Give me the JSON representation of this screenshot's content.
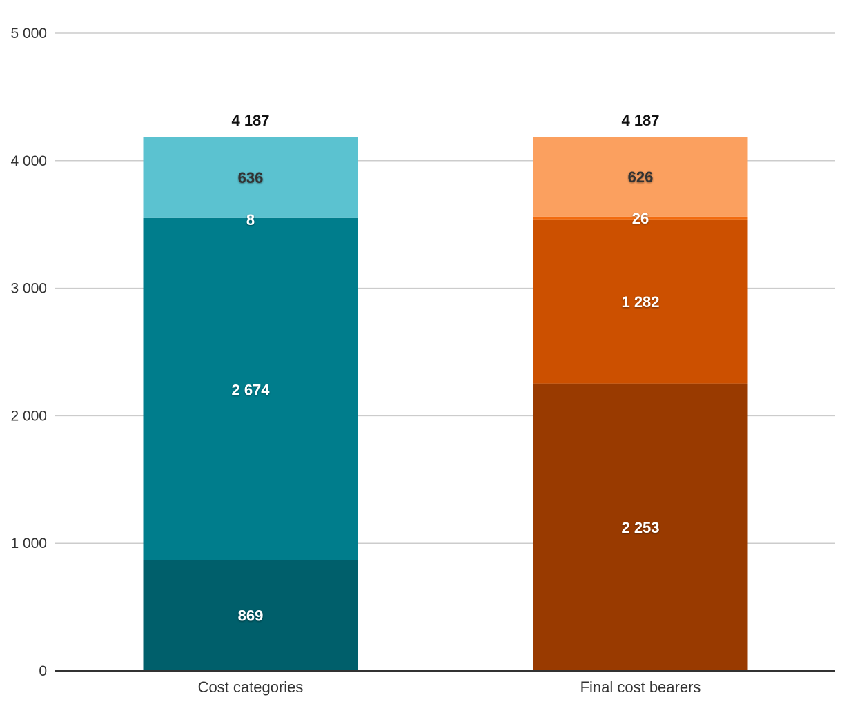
{
  "chart_data": {
    "type": "bar",
    "stacked": true,
    "categories": [
      "Cost categories",
      "Final cost bearers"
    ],
    "ylim": [
      0,
      5000
    ],
    "yticks": [
      0,
      1000,
      2000,
      3000,
      4000,
      5000
    ],
    "ytick_labels": [
      "0",
      "1 000",
      "2 000",
      "3 000",
      "4 000",
      "5 000"
    ],
    "grid": true,
    "totals": [
      {
        "value": 4187,
        "label": "4 187"
      },
      {
        "value": 4187,
        "label": "4 187"
      }
    ],
    "stacks": [
      [
        {
          "value": 869,
          "label": "869",
          "color": "#005f6b"
        },
        {
          "value": 2674,
          "label": "2 674",
          "color": "#007d8c"
        },
        {
          "value": 8,
          "label": "8",
          "color": "#007d8c"
        },
        {
          "value": 636,
          "label": "636",
          "color": "#5bc2d0"
        }
      ],
      [
        {
          "value": 2253,
          "label": "2 253",
          "color": "#993a00"
        },
        {
          "value": 1282,
          "label": "1 282",
          "color": "#cc5000"
        },
        {
          "value": 26,
          "label": "26",
          "color": "#f26b0f"
        },
        {
          "value": 626,
          "label": "626",
          "color": "#fba05f"
        }
      ]
    ]
  }
}
